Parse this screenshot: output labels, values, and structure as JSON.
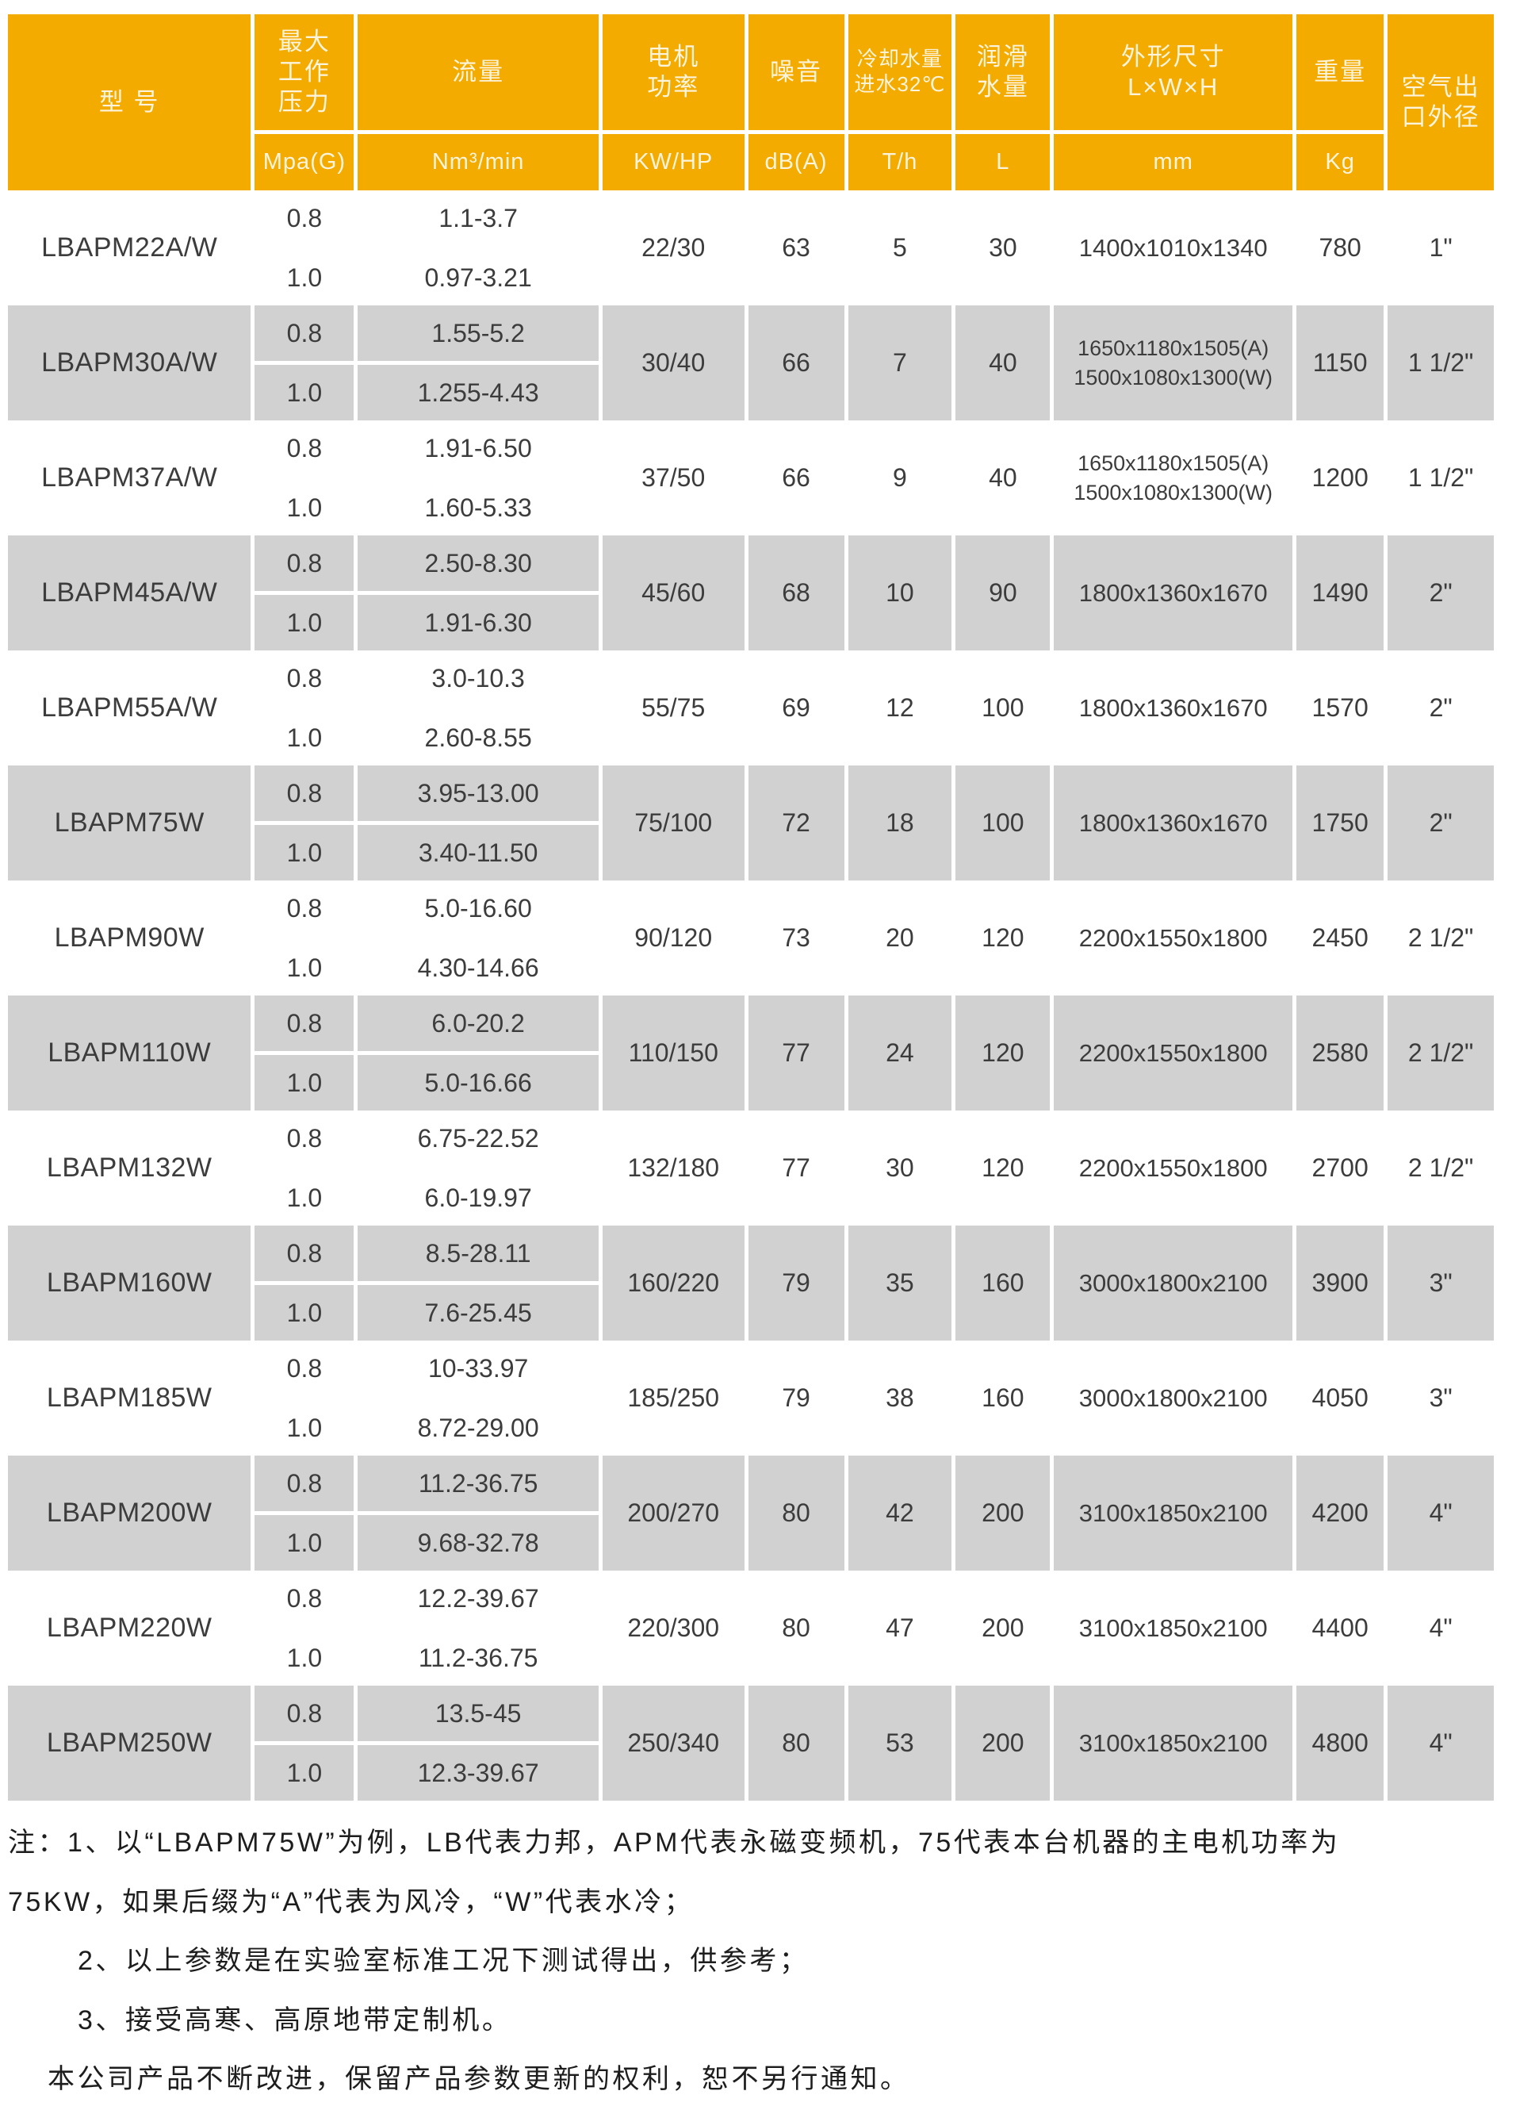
{
  "colors": {
    "header_bg": "#F3AB00",
    "header_text": "#FCF4DC",
    "row_alt_bg": "#D1D1D1",
    "cell_text": "#3C3C3C"
  },
  "table": {
    "columns": [
      {
        "id": "model",
        "label_lines": [
          "型 号"
        ],
        "unit": null
      },
      {
        "id": "pressure",
        "label_lines": [
          "最大",
          "工作",
          "压力"
        ],
        "unit": "Mpa(G)"
      },
      {
        "id": "flow",
        "label_lines": [
          "流量"
        ],
        "unit": "Nm³/min"
      },
      {
        "id": "power",
        "label_lines": [
          "电机",
          "功率"
        ],
        "unit": "KW/HP"
      },
      {
        "id": "noise",
        "label_lines": [
          "噪音"
        ],
        "unit": "dB(A)"
      },
      {
        "id": "cooling",
        "label_lines": [
          "冷却水量",
          "进水32℃"
        ],
        "unit": "T/h"
      },
      {
        "id": "lube",
        "label_lines": [
          "润滑",
          "水量"
        ],
        "unit": "L"
      },
      {
        "id": "dims",
        "label_lines": [
          "外形尺寸",
          "L×W×H"
        ],
        "unit": "mm"
      },
      {
        "id": "weight",
        "label_lines": [
          "重量"
        ],
        "unit": "Kg"
      },
      {
        "id": "outlet",
        "label_lines": [
          "空气出",
          "口外径"
        ],
        "unit": null
      }
    ],
    "rows": [
      {
        "model": "LBAPM22A/W",
        "variants": [
          {
            "pressure": "0.8",
            "flow": "1.1-3.7"
          },
          {
            "pressure": "1.0",
            "flow": "0.97-3.21"
          }
        ],
        "power": "22/30",
        "noise": "63",
        "cooling": "5",
        "lube": "30",
        "dims": [
          "1400x1010x1340"
        ],
        "weight": "780",
        "outlet": "1\""
      },
      {
        "model": "LBAPM30A/W",
        "variants": [
          {
            "pressure": "0.8",
            "flow": "1.55-5.2"
          },
          {
            "pressure": "1.0",
            "flow": "1.255-4.43"
          }
        ],
        "power": "30/40",
        "noise": "66",
        "cooling": "7",
        "lube": "40",
        "dims": [
          "1650x1180x1505(A)",
          "1500x1080x1300(W)"
        ],
        "weight": "1150",
        "outlet": "1 1/2\""
      },
      {
        "model": "LBAPM37A/W",
        "variants": [
          {
            "pressure": "0.8",
            "flow": "1.91-6.50"
          },
          {
            "pressure": "1.0",
            "flow": "1.60-5.33"
          }
        ],
        "power": "37/50",
        "noise": "66",
        "cooling": "9",
        "lube": "40",
        "dims": [
          "1650x1180x1505(A)",
          "1500x1080x1300(W)"
        ],
        "weight": "1200",
        "outlet": "1 1/2\""
      },
      {
        "model": "LBAPM45A/W",
        "variants": [
          {
            "pressure": "0.8",
            "flow": "2.50-8.30"
          },
          {
            "pressure": "1.0",
            "flow": "1.91-6.30"
          }
        ],
        "power": "45/60",
        "noise": "68",
        "cooling": "10",
        "lube": "90",
        "dims": [
          "1800x1360x1670"
        ],
        "weight": "1490",
        "outlet": "2\""
      },
      {
        "model": "LBAPM55A/W",
        "variants": [
          {
            "pressure": "0.8",
            "flow": "3.0-10.3"
          },
          {
            "pressure": "1.0",
            "flow": "2.60-8.55"
          }
        ],
        "power": "55/75",
        "noise": "69",
        "cooling": "12",
        "lube": "100",
        "dims": [
          "1800x1360x1670"
        ],
        "weight": "1570",
        "outlet": "2\""
      },
      {
        "model": "LBAPM75W",
        "variants": [
          {
            "pressure": "0.8",
            "flow": "3.95-13.00"
          },
          {
            "pressure": "1.0",
            "flow": "3.40-11.50"
          }
        ],
        "power": "75/100",
        "noise": "72",
        "cooling": "18",
        "lube": "100",
        "dims": [
          "1800x1360x1670"
        ],
        "weight": "1750",
        "outlet": "2\""
      },
      {
        "model": "LBAPM90W",
        "variants": [
          {
            "pressure": "0.8",
            "flow": "5.0-16.60"
          },
          {
            "pressure": "1.0",
            "flow": "4.30-14.66"
          }
        ],
        "power": "90/120",
        "noise": "73",
        "cooling": "20",
        "lube": "120",
        "dims": [
          "2200x1550x1800"
        ],
        "weight": "2450",
        "outlet": "2 1/2\""
      },
      {
        "model": "LBAPM110W",
        "variants": [
          {
            "pressure": "0.8",
            "flow": "6.0-20.2"
          },
          {
            "pressure": "1.0",
            "flow": "5.0-16.66"
          }
        ],
        "power": "110/150",
        "noise": "77",
        "cooling": "24",
        "lube": "120",
        "dims": [
          "2200x1550x1800"
        ],
        "weight": "2580",
        "outlet": "2 1/2\""
      },
      {
        "model": "LBAPM132W",
        "variants": [
          {
            "pressure": "0.8",
            "flow": "6.75-22.52"
          },
          {
            "pressure": "1.0",
            "flow": "6.0-19.97"
          }
        ],
        "power": "132/180",
        "noise": "77",
        "cooling": "30",
        "lube": "120",
        "dims": [
          "2200x1550x1800"
        ],
        "weight": "2700",
        "outlet": "2 1/2\""
      },
      {
        "model": "LBAPM160W",
        "variants": [
          {
            "pressure": "0.8",
            "flow": "8.5-28.11"
          },
          {
            "pressure": "1.0",
            "flow": "7.6-25.45"
          }
        ],
        "power": "160/220",
        "noise": "79",
        "cooling": "35",
        "lube": "160",
        "dims": [
          "3000x1800x2100"
        ],
        "weight": "3900",
        "outlet": "3\""
      },
      {
        "model": "LBAPM185W",
        "variants": [
          {
            "pressure": "0.8",
            "flow": "10-33.97"
          },
          {
            "pressure": "1.0",
            "flow": "8.72-29.00"
          }
        ],
        "power": "185/250",
        "noise": "79",
        "cooling": "38",
        "lube": "160",
        "dims": [
          "3000x1800x2100"
        ],
        "weight": "4050",
        "outlet": "3\""
      },
      {
        "model": "LBAPM200W",
        "variants": [
          {
            "pressure": "0.8",
            "flow": "11.2-36.75"
          },
          {
            "pressure": "1.0",
            "flow": "9.68-32.78"
          }
        ],
        "power": "200/270",
        "noise": "80",
        "cooling": "42",
        "lube": "200",
        "dims": [
          "3100x1850x2100"
        ],
        "weight": "4200",
        "outlet": "4\""
      },
      {
        "model": "LBAPM220W",
        "variants": [
          {
            "pressure": "0.8",
            "flow": "12.2-39.67"
          },
          {
            "pressure": "1.0",
            "flow": "11.2-36.75"
          }
        ],
        "power": "220/300",
        "noise": "80",
        "cooling": "47",
        "lube": "200",
        "dims": [
          "3100x1850x2100"
        ],
        "weight": "4400",
        "outlet": "4\""
      },
      {
        "model": "LBAPM250W",
        "variants": [
          {
            "pressure": "0.8",
            "flow": "13.5-45"
          },
          {
            "pressure": "1.0",
            "flow": "12.3-39.67"
          }
        ],
        "power": "250/340",
        "noise": "80",
        "cooling": "53",
        "lube": "200",
        "dims": [
          "3100x1850x2100"
        ],
        "weight": "4800",
        "outlet": "4\""
      }
    ]
  },
  "notes": [
    "注：1、以“LBAPM75W”为例，LB代表力邦，APM代表永磁变频机，75代表本台机器的主电机功率为",
    "75KW，如果后缀为“A”代表为风冷，“W”代表水冷；",
    "2、以上参数是在实验室标准工况下测试得出，供参考；",
    "3、接受高寒、高原地带定制机。",
    "本公司产品不断改进，保留产品参数更新的权利，恕不另行通知。"
  ]
}
